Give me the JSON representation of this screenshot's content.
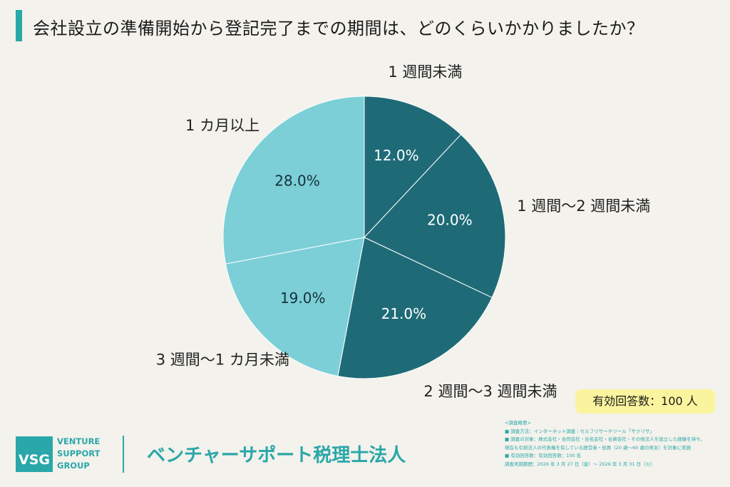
{
  "header": {
    "title": "会社設立の準備開始から登記完了までの期間は、どのくらいかかりましたか？"
  },
  "chart_data": {
    "type": "pie",
    "title": "会社設立の準備開始から登記完了までの期間は、どのくらいかかりましたか？",
    "start": "12 o'clock, clockwise",
    "slices": [
      {
        "label": "1 週間未満",
        "value": 12.0,
        "value_label": "12.0%",
        "color": "#1e6b77"
      },
      {
        "label": "1 週間〜2 週間未満",
        "value": 20.0,
        "value_label": "20.0%",
        "color": "#1e6b77"
      },
      {
        "label": "2 週間〜3 週間未満",
        "value": 21.0,
        "value_label": "21.0%",
        "color": "#1e6b77"
      },
      {
        "label": "3 週間〜1 カ月未満",
        "value": 19.0,
        "value_label": "19.0%",
        "color": "#7ccfd7"
      },
      {
        "label": "1 カ月以上",
        "value": 28.0,
        "value_label": "28.0%",
        "color": "#7ccfd7"
      }
    ],
    "separator_color": "#ffffff"
  },
  "respondents_label": "有効回答数：100 人",
  "footer": {
    "logo_mark": "VSG",
    "logo_lines": [
      "VENTURE",
      "SUPPORT",
      "GROUP"
    ],
    "company_name": "ベンチャーサポート税理士法人",
    "notes": [
      "<調査概要>",
      "■ 調査方法：インターネット調査｜セルフリサーチツール「サクリサ」",
      "■ 調査の対象：株式会社・合同会社・合名会社・合資会社・その他法人を設立した経験を持ち、",
      "現在も引続法人の代表権を有している経営者・役員（20 歳〜60 歳の男女）を対象に実施",
      "■ 有効回答数：有効回答数：100 名",
      "調査実施期間：2026 年 3 月 27 日（金）〜 2026 年 3 月 31 日（火）"
    ]
  }
}
